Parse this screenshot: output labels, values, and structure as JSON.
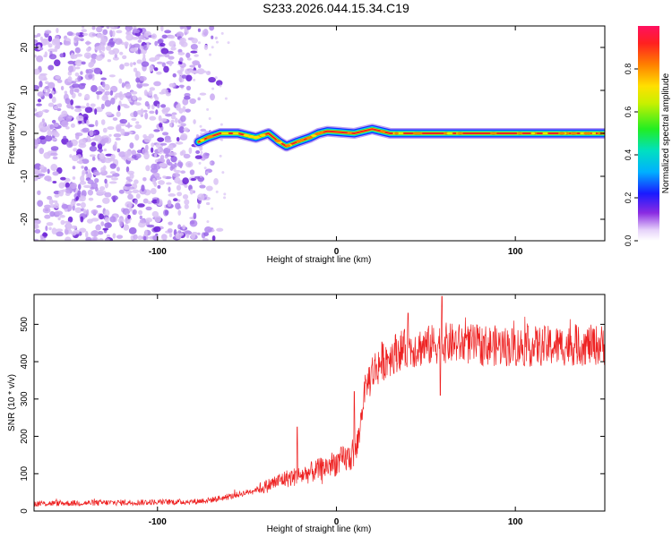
{
  "title": "S233.2026.044.15.34.C19",
  "colors": {
    "snr_line": "#ee2222",
    "scatter_dark": "#6a1fd6",
    "scatter_light": "#d9c2f5",
    "track_core": "#ee2222",
    "track_edge": "#1a2bff"
  },
  "chart_data": [
    {
      "type": "heatmap",
      "name": "spectrogram",
      "xlabel": "Height of straight line (km)",
      "ylabel": "Frequency (Hz)",
      "xlim": [
        -169,
        150
      ],
      "ylim": [
        -25,
        25
      ],
      "xticks": [
        -100,
        0,
        100
      ],
      "yticks": [
        -20,
        -10,
        0,
        10,
        20
      ],
      "noise_region_x": [
        -169,
        -65
      ],
      "track_start_x": -77,
      "track_points": [
        {
          "x": -77,
          "y": -2
        },
        {
          "x": -72,
          "y": -1
        },
        {
          "x": -65,
          "y": 0
        },
        {
          "x": -55,
          "y": 0
        },
        {
          "x": -45,
          "y": -1
        },
        {
          "x": -38,
          "y": 0
        },
        {
          "x": -32,
          "y": -2
        },
        {
          "x": -28,
          "y": -3
        },
        {
          "x": -22,
          "y": -2
        },
        {
          "x": -15,
          "y": -1
        },
        {
          "x": -10,
          "y": 0
        },
        {
          "x": -5,
          "y": 0.5
        },
        {
          "x": 10,
          "y": 0
        },
        {
          "x": 20,
          "y": 1
        },
        {
          "x": 30,
          "y": 0
        },
        {
          "x": 60,
          "y": 0
        },
        {
          "x": 100,
          "y": 0
        },
        {
          "x": 150,
          "y": 0
        }
      ],
      "colorbar": {
        "label": "Normalized spectral amplitude",
        "ticks": [
          0.0,
          0.2,
          0.4,
          0.6,
          0.8
        ],
        "tick_labels": [
          "0.0",
          "0.2",
          "0.4",
          "0.6",
          "0.8"
        ],
        "range": [
          0,
          1
        ]
      }
    },
    {
      "type": "line",
      "name": "snr",
      "xlabel": "Height of straight line (km)",
      "ylabel": "SNR (10 * v/v)",
      "xlim": [
        -169,
        150
      ],
      "ylim": [
        0,
        580
      ],
      "xticks": [
        -100,
        0,
        100
      ],
      "yticks": [
        0,
        100,
        200,
        300,
        400,
        500
      ],
      "series": [
        {
          "name": "SNR",
          "trend": [
            {
              "x": -169,
              "y": 20
            },
            {
              "x": -80,
              "y": 25
            },
            {
              "x": -70,
              "y": 30
            },
            {
              "x": -60,
              "y": 38
            },
            {
              "x": -50,
              "y": 50
            },
            {
              "x": -40,
              "y": 65
            },
            {
              "x": -30,
              "y": 85
            },
            {
              "x": -20,
              "y": 95
            },
            {
              "x": -10,
              "y": 110
            },
            {
              "x": 0,
              "y": 130
            },
            {
              "x": 8,
              "y": 145
            },
            {
              "x": 12,
              "y": 175
            },
            {
              "x": 14,
              "y": 260
            },
            {
              "x": 16,
              "y": 330
            },
            {
              "x": 20,
              "y": 370
            },
            {
              "x": 25,
              "y": 400
            },
            {
              "x": 35,
              "y": 430
            },
            {
              "x": 60,
              "y": 450
            },
            {
              "x": 100,
              "y": 440
            },
            {
              "x": 150,
              "y": 445
            }
          ],
          "peaks": [
            {
              "x": -22,
              "y": 225
            },
            {
              "x": 59,
              "y": 575
            },
            {
              "x": 40,
              "y": 530
            },
            {
              "x": 10,
              "y": 320
            },
            {
              "x": 58,
              "y": 310
            }
          ]
        }
      ]
    }
  ]
}
